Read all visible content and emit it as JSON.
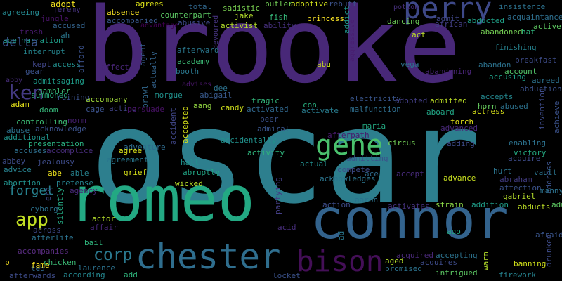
{
  "words": [
    {
      "text": "oscar",
      "color": "#2d7f8e"
    },
    {
      "text": "brooke",
      "color": "#482878"
    },
    {
      "text": "romeo",
      "color": "#23a983"
    },
    {
      "text": "connor",
      "color": "#33638d"
    },
    {
      "text": "chester",
      "color": "#2f6e8e"
    },
    {
      "text": "perry",
      "color": "#3e4989"
    },
    {
      "text": "bison",
      "color": "#440f57"
    },
    {
      "text": "gene",
      "color": "#4ac16d"
    },
    {
      "text": "ken",
      "color": "#443a83"
    },
    {
      "text": "app",
      "color": "#c2df23"
    },
    {
      "text": "corp",
      "color": "#2a788e"
    },
    {
      "text": "forget",
      "color": "#26818e"
    },
    {
      "text": "delta",
      "color": "#3b528b"
    },
    {
      "text": "adopt",
      "color": "#f8e621"
    },
    {
      "text": "jeremy",
      "color": "#46327e"
    },
    {
      "text": "agrees",
      "color": "#dde318"
    },
    {
      "text": "total",
      "color": "#31688e"
    },
    {
      "text": "sadistic",
      "color": "#7ad151"
    },
    {
      "text": "butler",
      "color": "#73d056"
    },
    {
      "text": "adoptive",
      "color": "#d2e21b"
    },
    {
      "text": "rebuff",
      "color": "#3b528b"
    },
    {
      "text": "potion",
      "color": "#472f7d"
    },
    {
      "text": "insistence",
      "color": "#2c728e"
    },
    {
      "text": "agreeing",
      "color": "#24878e"
    },
    {
      "text": "jungle",
      "color": "#471365"
    },
    {
      "text": "absence",
      "color": "#fde725"
    },
    {
      "text": "counterpart",
      "color": "#5cc863"
    },
    {
      "text": "jake",
      "color": "#b5de2b"
    },
    {
      "text": "fish",
      "color": "#35b779"
    },
    {
      "text": "princess",
      "color": "#fde725"
    },
    {
      "text": "abducted",
      "color": "#1fa187"
    },
    {
      "text": "acquaintance",
      "color": "#2e6f8e"
    },
    {
      "text": "accompanied",
      "color": "#38588c"
    },
    {
      "text": "advantage",
      "color": "#440154"
    },
    {
      "text": "abusive",
      "color": "#3e4989"
    },
    {
      "text": "activist",
      "color": "#b5de2b"
    },
    {
      "text": "ability",
      "color": "#46307e"
    },
    {
      "text": "dancing",
      "color": "#6ece58"
    },
    {
      "text": "admit",
      "color": "#404688"
    },
    {
      "text": "african",
      "color": "#433e85"
    },
    {
      "text": "active",
      "color": "#5ec962"
    },
    {
      "text": "accused",
      "color": "#33638d"
    },
    {
      "text": "ah",
      "color": "#2a788e"
    },
    {
      "text": "trash",
      "color": "#481a6c"
    },
    {
      "text": "hat",
      "color": "#2fb47c"
    },
    {
      "text": "age",
      "color": "#1f9e89"
    },
    {
      "text": "narration",
      "color": "#1f9e89"
    },
    {
      "text": "afford",
      "color": "#3b528b"
    },
    {
      "text": "agent",
      "color": "#365c8d"
    },
    {
      "text": "afterward",
      "color": "#2a788e"
    },
    {
      "text": "devoured",
      "color": "#46337f"
    },
    {
      "text": "addict",
      "color": "#1f958b"
    },
    {
      "text": "aggressive",
      "color": "#481f70"
    },
    {
      "text": "act",
      "color": "#bddf26"
    },
    {
      "text": "abandoned",
      "color": "#75d054"
    },
    {
      "text": "interrupt",
      "color": "#25858e"
    },
    {
      "text": "finishing",
      "color": "#26828e"
    },
    {
      "text": "access",
      "color": "#218f8d"
    },
    {
      "text": "kept",
      "color": "#404688"
    },
    {
      "text": "gear",
      "color": "#3b528b"
    },
    {
      "text": "affect",
      "color": "#482576"
    },
    {
      "text": "academy",
      "color": "#3bbb75"
    },
    {
      "text": "abu",
      "color": "#c8e020"
    },
    {
      "text": "vega",
      "color": "#2d708e"
    },
    {
      "text": "abandon",
      "color": "#2c728e"
    },
    {
      "text": "breakfast",
      "color": "#3e4c8a"
    },
    {
      "text": "abandoning",
      "color": "#482475"
    },
    {
      "text": "account",
      "color": "#52c569"
    },
    {
      "text": "abby",
      "color": "#472d7b"
    },
    {
      "text": "admitsaging",
      "color": "#1e9c89"
    },
    {
      "text": "gambler",
      "color": "#3bbb75"
    },
    {
      "text": "actually",
      "color": "#33638d"
    },
    {
      "text": "booth",
      "color": "#2a788e"
    },
    {
      "text": "brawl",
      "color": "#31688e"
    },
    {
      "text": "advises",
      "color": "#481668"
    },
    {
      "text": "dee",
      "color": "#2c728e"
    },
    {
      "text": "accusing",
      "color": "#1fa188"
    },
    {
      "text": "agreed",
      "color": "#2c728e"
    },
    {
      "text": "abduction",
      "color": "#3b528b"
    },
    {
      "text": "summoned",
      "color": "#2ab07f"
    },
    {
      "text": "morgue",
      "color": "#21918c"
    },
    {
      "text": "abigail",
      "color": "#38598c"
    },
    {
      "text": "accepts",
      "color": "#24878e"
    },
    {
      "text": "adam",
      "color": "#e7e419"
    },
    {
      "text": "ruining",
      "color": "#3b528b"
    },
    {
      "text": "accompany",
      "color": "#a0da39"
    },
    {
      "text": "electricity",
      "color": "#39558c"
    },
    {
      "text": "adopted",
      "color": "#433e85"
    },
    {
      "text": "admitted",
      "color": "#bddf26"
    },
    {
      "text": "horn",
      "color": "#65cb5e"
    },
    {
      "text": "abused",
      "color": "#2c728e"
    },
    {
      "text": "invention",
      "color": "#3e4c8a"
    },
    {
      "text": "achieve",
      "color": "#3b528b"
    },
    {
      "text": "doom",
      "color": "#35b779"
    },
    {
      "text": "cage",
      "color": "#3b528b"
    },
    {
      "text": "acting",
      "color": "#414487"
    },
    {
      "text": "persuade",
      "color": "#471164"
    },
    {
      "text": "tragic",
      "color": "#32b67a"
    },
    {
      "text": "aang",
      "color": "#93d741"
    },
    {
      "text": "candy",
      "color": "#d0e11c"
    },
    {
      "text": "activated",
      "color": "#31688e"
    },
    {
      "text": "con",
      "color": "#29af7f"
    },
    {
      "text": "activate",
      "color": "#287c8e"
    },
    {
      "text": "malfunction",
      "color": "#2e6e8e"
    },
    {
      "text": "aboard",
      "color": "#21a685"
    },
    {
      "text": "actress",
      "color": "#dae319"
    },
    {
      "text": "norm",
      "color": "#482173"
    },
    {
      "text": "controlling",
      "color": "#3dbc74"
    },
    {
      "text": "acknowledge",
      "color": "#3b528b"
    },
    {
      "text": "accident",
      "color": "#404688"
    },
    {
      "text": "accepted",
      "color": "#d8e219"
    },
    {
      "text": "beer",
      "color": "#3b528b"
    },
    {
      "text": "torch",
      "color": "#e5e419"
    },
    {
      "text": "abuse",
      "color": "#2c728e"
    },
    {
      "text": "additional",
      "color": "#1f948c"
    },
    {
      "text": "admiral",
      "color": "#39558c"
    },
    {
      "text": "maria",
      "color": "#24aa83"
    },
    {
      "text": "advanced",
      "color": "#482878"
    },
    {
      "text": "presentation",
      "color": "#29af7f"
    },
    {
      "text": "accidentally",
      "color": "#21918c"
    },
    {
      "text": "afterpath",
      "color": "#481a6c"
    },
    {
      "text": "adding",
      "color": "#3e4c8a"
    },
    {
      "text": "accuses",
      "color": "#2e6f8e"
    },
    {
      "text": "accomplice",
      "color": "#472c7a"
    },
    {
      "text": "adventure",
      "color": "#2f6c8e"
    },
    {
      "text": "activity",
      "color": "#2fb47c"
    },
    {
      "text": "circus",
      "color": "#73d056"
    },
    {
      "text": "enabling",
      "color": "#2c728e"
    },
    {
      "text": "abbey",
      "color": "#3e4c8a"
    },
    {
      "text": "agree",
      "color": "#dde318"
    },
    {
      "text": "admitting",
      "color": "#3b528b"
    },
    {
      "text": "victory",
      "color": "#25ab82"
    },
    {
      "text": "advice",
      "color": "#27808e"
    },
    {
      "text": "jealousy",
      "color": "#3e4c8a"
    },
    {
      "text": "agreement",
      "color": "#2a778e"
    },
    {
      "text": "actual",
      "color": "#228d8d"
    },
    {
      "text": "acquire",
      "color": "#3e4c8a"
    },
    {
      "text": "abe",
      "color": "#f1e51d"
    },
    {
      "text": "able",
      "color": "#26828e"
    },
    {
      "text": "grief",
      "color": "#d8e219"
    },
    {
      "text": "hall",
      "color": "#20928c"
    },
    {
      "text": "compete",
      "color": "#3e4c8a"
    },
    {
      "text": "accept",
      "color": "#472a7a"
    },
    {
      "text": "abraham",
      "color": "#433d84"
    },
    {
      "text": "address",
      "color": "#3b528b"
    },
    {
      "text": "abortion",
      "color": "#21918c"
    },
    {
      "text": "pretense",
      "color": "#26818e"
    },
    {
      "text": "era",
      "color": "#3e4c8a"
    },
    {
      "text": "agency",
      "color": "#482979"
    },
    {
      "text": "abruptly",
      "color": "#21a685"
    },
    {
      "text": "acknowledges",
      "color": "#2b758e"
    },
    {
      "text": "ace",
      "color": "#2f6b8e"
    },
    {
      "text": "advance",
      "color": "#c8e020"
    },
    {
      "text": "hurt",
      "color": "#2b748e"
    },
    {
      "text": "vault",
      "color": "#2b748e"
    },
    {
      "text": "affection",
      "color": "#3b528b"
    },
    {
      "text": "manny",
      "color": "#2c728e"
    },
    {
      "text": "wicked",
      "color": "#b8de29"
    },
    {
      "text": "partying",
      "color": "#433e85"
    },
    {
      "text": "gabriel",
      "color": "#b5de2b"
    },
    {
      "text": "cyborg",
      "color": "#2c728e"
    },
    {
      "text": "aaron",
      "color": "#2c728e"
    },
    {
      "text": "activates",
      "color": "#46327e"
    },
    {
      "text": "strain",
      "color": "#8bd646"
    },
    {
      "text": "addition",
      "color": "#1f9e89"
    },
    {
      "text": "abducts",
      "color": "#bddf26"
    },
    {
      "text": "adult",
      "color": "#5ec962"
    },
    {
      "text": "action",
      "color": "#3e4c8a"
    },
    {
      "text": "silently",
      "color": "#24aa83"
    },
    {
      "text": "across",
      "color": "#3e4989"
    },
    {
      "text": "actor",
      "color": "#b5de2b"
    },
    {
      "text": "affair",
      "color": "#482878"
    },
    {
      "text": "ad",
      "color": "#2a778e"
    },
    {
      "text": "ago",
      "color": "#25ab82"
    },
    {
      "text": "afraid",
      "color": "#39558c"
    },
    {
      "text": "afterlife",
      "color": "#2c728e"
    },
    {
      "text": "bail",
      "color": "#2fb47c"
    },
    {
      "text": "acid",
      "color": "#472d7b"
    },
    {
      "text": "accompanies",
      "color": "#5a2d82"
    },
    {
      "text": "drunken",
      "color": "#3e4c8a"
    },
    {
      "text": "acquired",
      "color": "#482878"
    },
    {
      "text": "accepting",
      "color": "#2c728e"
    },
    {
      "text": "warm",
      "color": "#b5de2b"
    },
    {
      "text": "p",
      "color": "#fde725"
    },
    {
      "text": "chicken",
      "color": "#3bbb75"
    },
    {
      "text": "aged",
      "color": "#b5de2b"
    },
    {
      "text": "acquires",
      "color": "#3e4c8a"
    },
    {
      "text": "banning",
      "color": "#d2e21b"
    },
    {
      "text": "ted",
      "color": "#31688e"
    },
    {
      "text": "fame",
      "color": "#fde725"
    },
    {
      "text": "laurence",
      "color": "#2c728e"
    },
    {
      "text": "promised",
      "color": "#2c728e"
    },
    {
      "text": "afterwards",
      "color": "#3e4c8a"
    },
    {
      "text": "according",
      "color": "#24868e"
    },
    {
      "text": "add",
      "color": "#2fb47c"
    },
    {
      "text": "locket",
      "color": "#3b528b"
    },
    {
      "text": "intrigued",
      "color": "#5cc863"
    },
    {
      "text": "firework",
      "color": "#26828e"
    }
  ]
}
